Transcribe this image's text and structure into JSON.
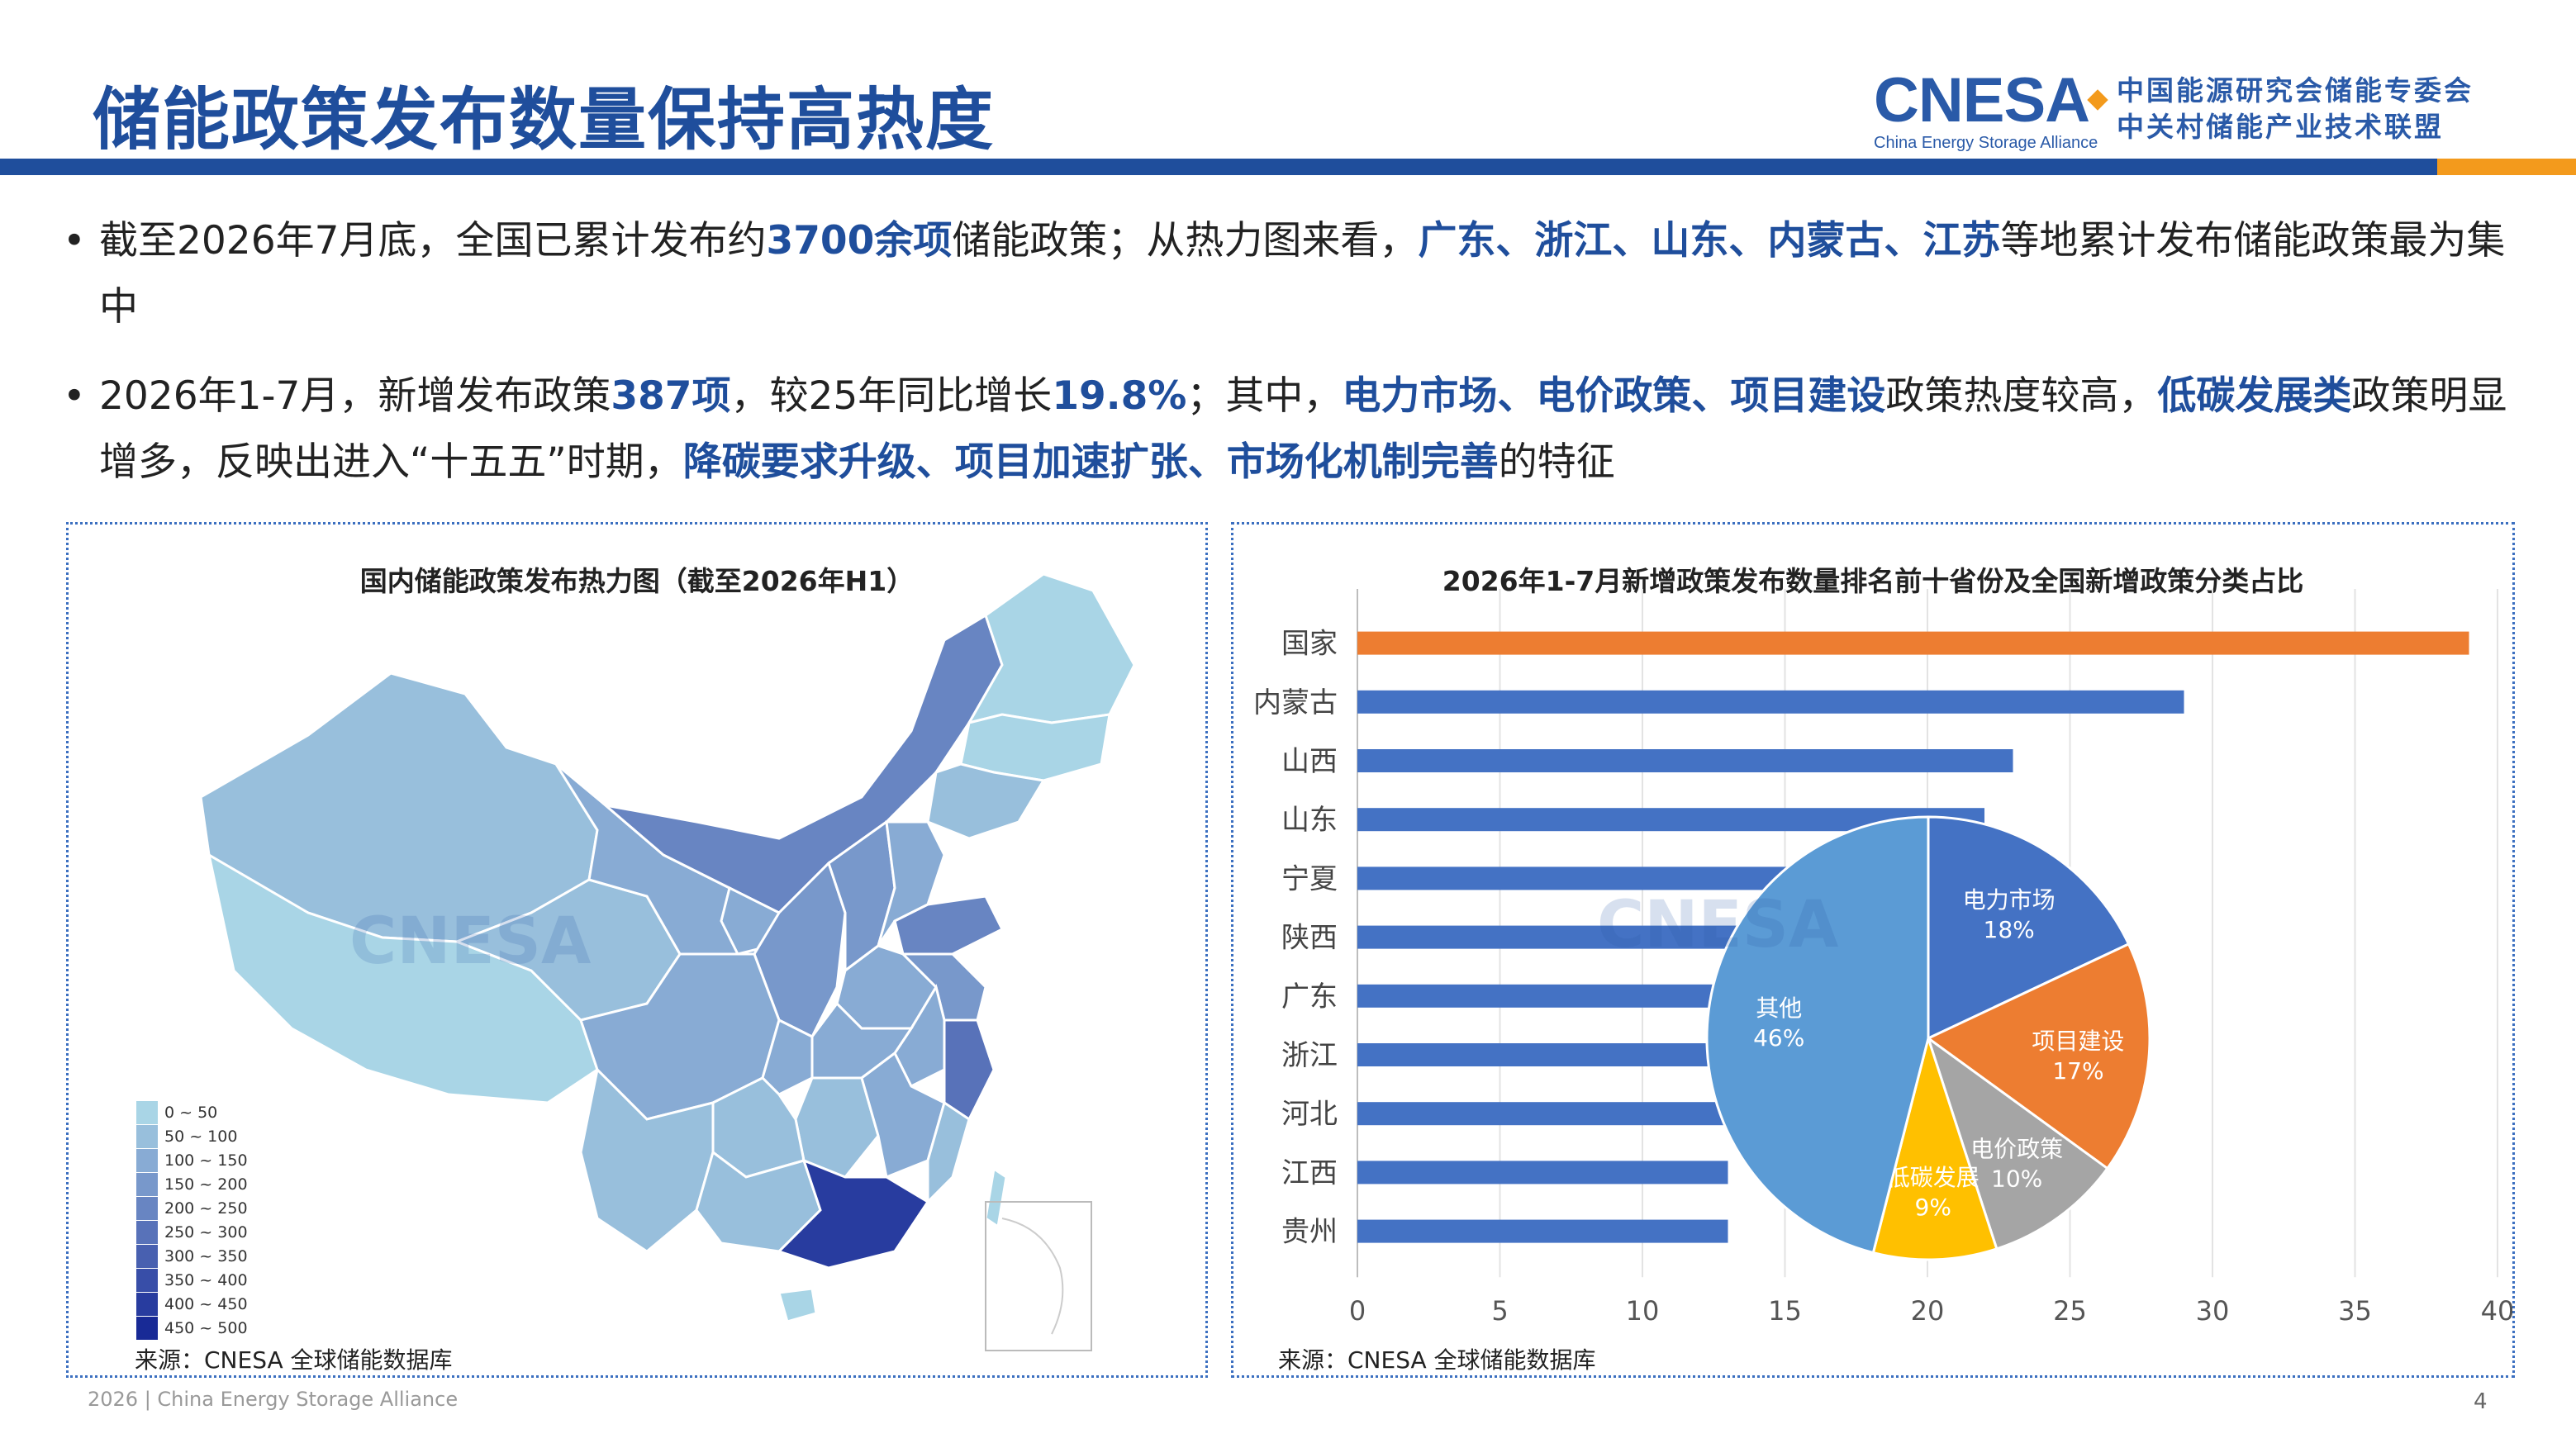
{
  "title": "储能政策发布数量保持高热度",
  "logo": {
    "main": "CNESA",
    "sub": "China Energy Storage Alliance",
    "cn_line1": "中国能源研究会储能专委会",
    "cn_line2": "中关村储能产业技术联盟"
  },
  "bullets": [
    [
      {
        "t": "截至2026年7月底，全国已累计发布约",
        "h": false
      },
      {
        "t": "3700余项",
        "h": true
      },
      {
        "t": "储能政策；从热力图来看，",
        "h": false
      },
      {
        "t": "广东、浙江、山东、内蒙古、江苏",
        "h": true
      },
      {
        "t": "等地累计发布储能政策最为集中",
        "h": false
      }
    ],
    [
      {
        "t": "2026年1-7月，新增发布政策",
        "h": false
      },
      {
        "t": "387项",
        "h": true
      },
      {
        "t": "，较25年同比增长",
        "h": false
      },
      {
        "t": "19.8%",
        "h": true
      },
      {
        "t": "；其中，",
        "h": false
      },
      {
        "t": "电力市场、电价政策、项目建设",
        "h": true
      },
      {
        "t": "政策热度较高，",
        "h": false
      },
      {
        "t": "低碳发展类",
        "h": true
      },
      {
        "t": "政策明显增多，反映出进入“十五五”时期，",
        "h": false
      },
      {
        "t": "降碳要求升级、项目加速扩张、市场化机制完善",
        "h": true
      },
      {
        "t": "的特征",
        "h": false
      }
    ]
  ],
  "left_panel": {
    "title": "国内储能政策发布热力图（截至2026年H1）",
    "source": "来源：CNESA 全球储能数据库",
    "legend": [
      {
        "label": "0 ~ 50",
        "color": "#a9d5e6"
      },
      {
        "label": "50 ~ 100",
        "color": "#98bfdc"
      },
      {
        "label": "100 ~ 150",
        "color": "#88abd4"
      },
      {
        "label": "150 ~ 200",
        "color": "#7898cb"
      },
      {
        "label": "200 ~ 250",
        "color": "#6885c2"
      },
      {
        "label": "250 ~ 300",
        "color": "#5872b9"
      },
      {
        "label": "300 ~ 350",
        "color": "#4860b0"
      },
      {
        "label": "350 ~ 400",
        "color": "#384ea8"
      },
      {
        "label": "400 ~ 450",
        "color": "#283c9f"
      },
      {
        "label": "450 ~ 500",
        "color": "#182a96"
      }
    ]
  },
  "right_panel": {
    "title": "2026年1-7月新增政策发布数量排名前十省份及全国新增政策分类占比",
    "source": "来源：CNESA 全球储能数据库"
  },
  "chart_data": [
    {
      "type": "bar",
      "orientation": "horizontal",
      "categories": [
        "国家",
        "内蒙古",
        "山西",
        "山东",
        "宁夏",
        "陕西",
        "广东",
        "浙江",
        "河北",
        "江西",
        "贵州"
      ],
      "values": [
        39,
        29,
        23,
        22,
        19,
        16,
        15,
        15,
        14,
        13,
        13
      ],
      "highlight_color": "#ed7d31",
      "bar_color": "#4472c4",
      "xlim": [
        0,
        40
      ],
      "xticks": [
        0,
        5,
        10,
        15,
        20,
        25,
        30,
        35,
        40
      ],
      "grid": true
    },
    {
      "type": "pie",
      "slices": [
        {
          "label": "电力市场",
          "value": 18,
          "display": "18%",
          "color": "#4472c4"
        },
        {
          "label": "项目建设",
          "value": 17,
          "display": "17%",
          "color": "#ed7d31"
        },
        {
          "label": "电价政策",
          "value": 10,
          "display": "10%",
          "color": "#a5a5a5"
        },
        {
          "label": "低碳发展",
          "value": 9,
          "display": "9%",
          "color": "#ffc000"
        },
        {
          "label": "其他",
          "value": 46,
          "display": "46%",
          "color": "#5b9bd5"
        }
      ]
    }
  ],
  "footer": "2026 | China Energy Storage Alliance",
  "page_number": "4"
}
